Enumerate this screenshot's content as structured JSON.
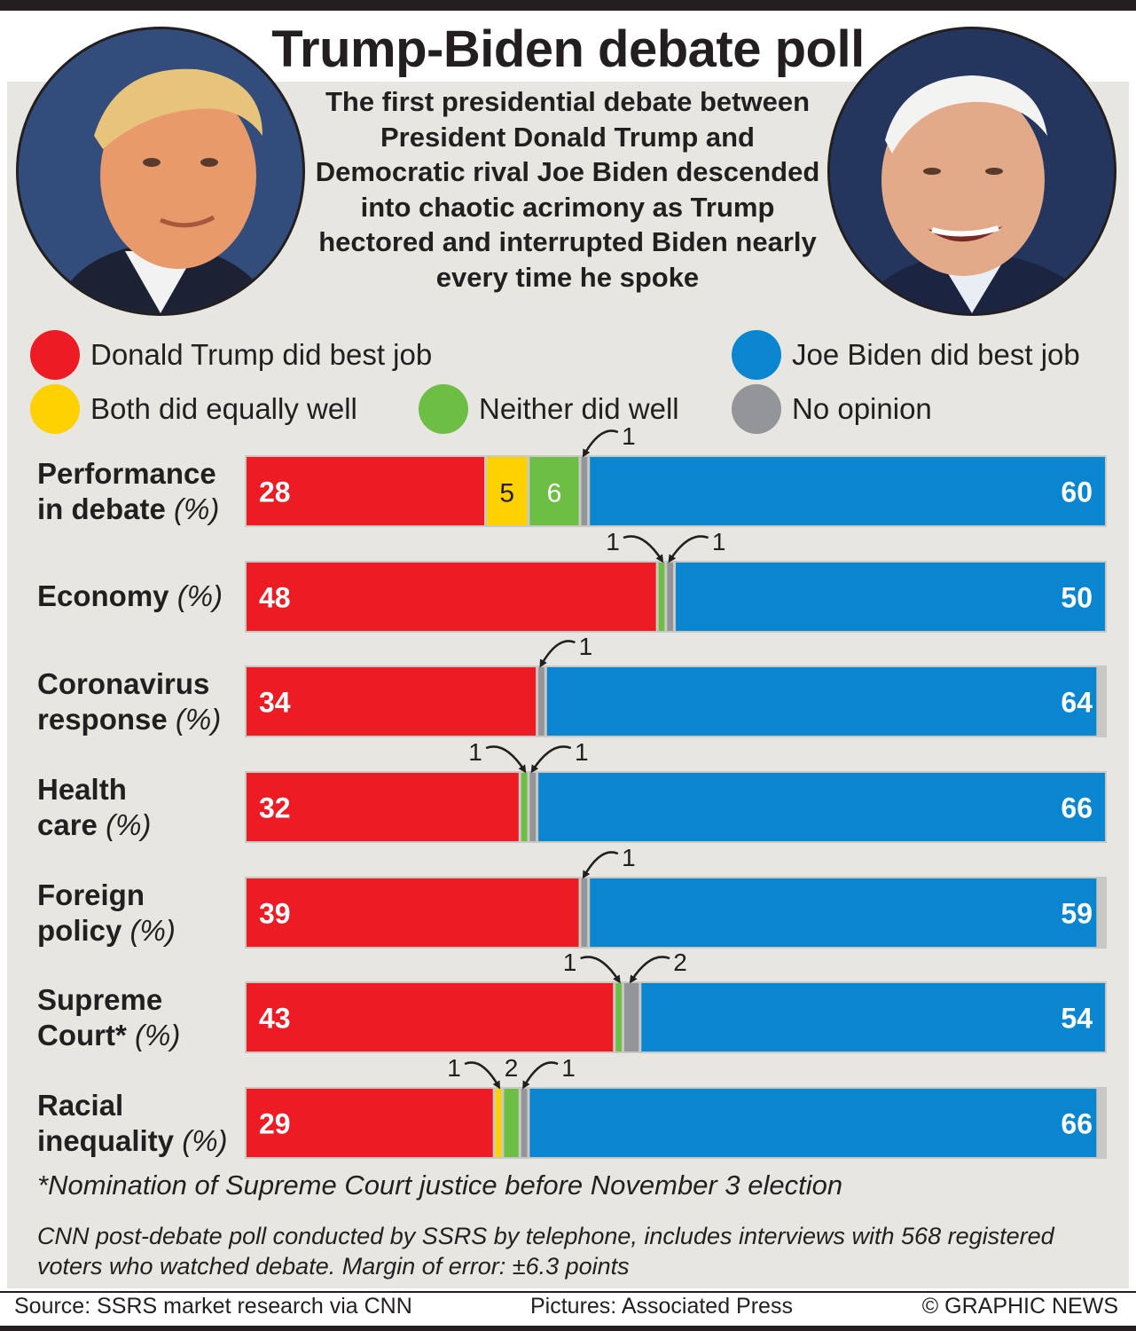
{
  "header": {
    "title": "Trump-Biden debate poll",
    "intro": "The first presidential debate between President Donald Trump and Democratic rival Joe Biden descended into chaotic acrimony as Trump hectored and interrupted Biden nearly every time he spoke"
  },
  "legend": [
    {
      "label": "Donald Trump did best job",
      "color": "#ed1c24"
    },
    {
      "label": "Joe Biden did best job",
      "color": "#0a86d0"
    },
    {
      "label": "Both did equally well",
      "color": "#ffd100"
    },
    {
      "label": "Neither did well",
      "color": "#6cbe45"
    },
    {
      "label": "No opinion",
      "color": "#939598"
    }
  ],
  "colors": {
    "trump": "#ed1c24",
    "both": "#ffd100",
    "neither": "#6cbe45",
    "no_opinion": "#939598",
    "biden": "#0a86d0"
  },
  "rows": [
    {
      "name": "Performance in debate",
      "line1": "Performance",
      "line2": "in debate",
      "unit": "(%)"
    },
    {
      "name": "Economy",
      "line1": "Economy",
      "line2": "",
      "unit": "(%)"
    },
    {
      "name": "Coronavirus response",
      "line1": "Coronavirus",
      "line2": "response",
      "unit": "(%)"
    },
    {
      "name": "Health care",
      "line1": "Health",
      "line2": "care",
      "unit": "(%)"
    },
    {
      "name": "Foreign policy",
      "line1": "Foreign",
      "line2": "policy",
      "unit": "(%)"
    },
    {
      "name": "Supreme Court",
      "line1": "Supreme",
      "line2": "Court*",
      "unit": "(%)"
    },
    {
      "name": "Racial inequality",
      "line1": "Racial",
      "line2": "inequality",
      "unit": "(%)"
    }
  ],
  "chart_data": {
    "type": "bar",
    "stacked": true,
    "orientation": "horizontal",
    "categories": [
      "Performance in debate",
      "Economy",
      "Coronavirus response",
      "Health care",
      "Foreign policy",
      "Supreme Court",
      "Racial inequality"
    ],
    "series": [
      {
        "name": "Donald Trump did best job",
        "values": [
          28,
          48,
          34,
          32,
          39,
          43,
          29
        ]
      },
      {
        "name": "Both did equally well",
        "values": [
          5,
          0,
          0,
          0,
          0,
          0,
          1
        ]
      },
      {
        "name": "Neither did well",
        "values": [
          6,
          1,
          0,
          1,
          0,
          1,
          2
        ]
      },
      {
        "name": "No opinion",
        "values": [
          1,
          1,
          1,
          1,
          1,
          2,
          1
        ]
      },
      {
        "name": "Joe Biden did best job",
        "values": [
          60,
          50,
          64,
          66,
          59,
          54,
          66
        ]
      }
    ],
    "xlim": [
      0,
      100
    ]
  },
  "footnote": "*Nomination of Supreme Court justice before November 3 election",
  "methodology": "CNN post-debate poll conducted by SSRS by telephone, includes interviews with 568 registered voters who watched debate. Margin of error: ±6.3 points",
  "credits": {
    "source": "Source: SSRS market research via CNN",
    "pictures": "Pictures: Associated Press",
    "copyright": "© GRAPHIC NEWS"
  }
}
